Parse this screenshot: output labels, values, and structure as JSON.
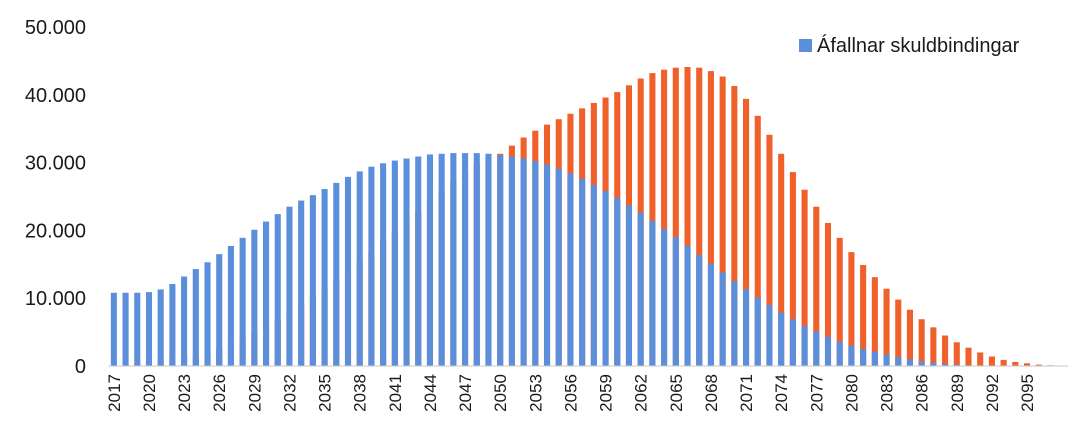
{
  "chart_data": {
    "type": "bar",
    "title": "",
    "xlabel": "",
    "ylabel": "",
    "ylim": [
      0,
      50000
    ],
    "y_ticks": [
      0,
      10000,
      20000,
      30000,
      40000,
      50000
    ],
    "y_tick_labels": [
      "0",
      "10.000",
      "20.000",
      "30.000",
      "40.000",
      "50.000"
    ],
    "x_tick_labels": [
      "2017",
      "2020",
      "2023",
      "2026",
      "2029",
      "2032",
      "2035",
      "2038",
      "2041",
      "2044",
      "2047",
      "2050",
      "2053",
      "2056",
      "2059",
      "2062",
      "2065",
      "2068",
      "2071",
      "2074",
      "2077",
      "2080",
      "2083",
      "2086",
      "2089",
      "2092",
      "2095"
    ],
    "grid": false,
    "legend_position": "top-right",
    "legend": [
      "Áfallnar skuldbindingar"
    ],
    "colors": {
      "series1": "#5b8fdc",
      "series2": "#f0602a"
    },
    "x_start": 2017,
    "x_end": 2098,
    "series": [
      {
        "name": "Áfallnar skuldbindingar",
        "values": [
          10800,
          10800,
          10800,
          10900,
          11300,
          12100,
          13200,
          14300,
          15300,
          16500,
          17700,
          18900,
          20100,
          21300,
          22400,
          23500,
          24400,
          25200,
          26100,
          27000,
          27900,
          28700,
          29400,
          29900,
          30300,
          30600,
          30900,
          31200,
          31300,
          31400,
          31400,
          31400,
          31300,
          31100,
          30900,
          30600,
          30200,
          29700,
          29100,
          28400,
          27600,
          26700,
          25800,
          24800,
          23700,
          22600,
          21400,
          20200,
          19000,
          17700,
          16400,
          15100,
          13800,
          12500,
          11300,
          10100,
          9000,
          7900,
          6900,
          5900,
          5100,
          4300,
          3600,
          3000,
          2500,
          2100,
          1700,
          1300,
          1000,
          700,
          500,
          300,
          200,
          100,
          50,
          20,
          0,
          0,
          0,
          0,
          0,
          0
        ]
      },
      {
        "values": [
          100,
          200,
          300,
          500,
          700,
          1000,
          1300,
          1700,
          2200,
          2800,
          3400,
          4100,
          4900,
          5800,
          6800,
          7900,
          9000,
          10200,
          11400,
          12700,
          14000,
          15400,
          16900,
          18400,
          19900,
          21400,
          22900,
          24400,
          25900,
          27400,
          28700,
          29900,
          30600,
          31300,
          32500,
          33700,
          34700,
          35600,
          36400,
          37200,
          38000,
          38800,
          39600,
          40400,
          41400,
          42400,
          43200,
          43700,
          44000,
          44100,
          44000,
          43500,
          42700,
          41300,
          39400,
          36900,
          34100,
          31300,
          28600,
          26000,
          23500,
          21100,
          18900,
          16800,
          14900,
          13100,
          11400,
          9800,
          8300,
          6900,
          5700,
          4500,
          3500,
          2700,
          2000,
          1400,
          900,
          600,
          400,
          200,
          100,
          0
        ]
      }
    ]
  }
}
